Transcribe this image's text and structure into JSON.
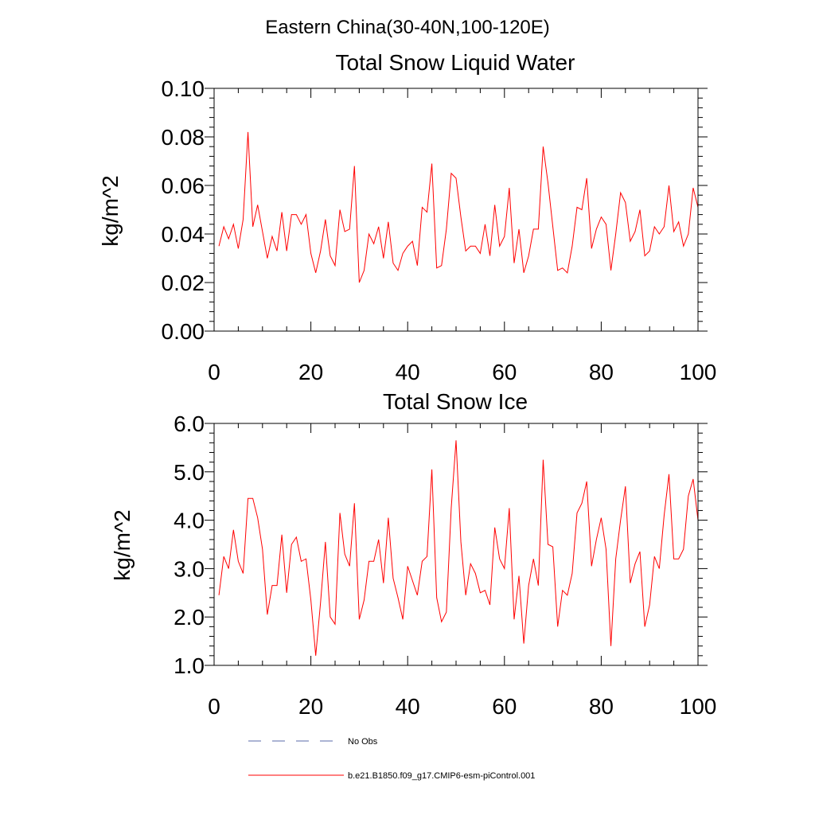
{
  "figure_title": "Eastern China(30-40N,100-120E)",
  "colors": {
    "series": "#ff0000",
    "no_obs": "#5a6aa8",
    "axis": "#000000"
  },
  "legend": [
    {
      "label": "No Obs",
      "style": "dashed",
      "color": "#5a6aa8"
    },
    {
      "label": "b.e21.B1850.f09_g17.CMIP6-esm-piControl.001",
      "style": "solid",
      "color": "#ff0000"
    }
  ],
  "chart_data": [
    {
      "type": "line",
      "title": "Total Snow Liquid Water",
      "ylabel": "kg/m^2",
      "xlabel": "",
      "xlim": [
        0,
        100
      ],
      "ylim": [
        0,
        0.1
      ],
      "xticks": [
        "0",
        "20",
        "40",
        "60",
        "80",
        "100"
      ],
      "yticks": [
        "0.00",
        "0.02",
        "0.04",
        "0.06",
        "0.08",
        "0.10"
      ],
      "series": [
        {
          "name": "b.e21.B1850.f09_g17.CMIP6-esm-piControl.001",
          "x_start": 1,
          "values": [
            0.035,
            0.043,
            0.038,
            0.044,
            0.034,
            0.046,
            0.082,
            0.043,
            0.052,
            0.041,
            0.03,
            0.039,
            0.033,
            0.049,
            0.033,
            0.048,
            0.048,
            0.044,
            0.048,
            0.032,
            0.024,
            0.033,
            0.046,
            0.031,
            0.027,
            0.05,
            0.041,
            0.042,
            0.068,
            0.02,
            0.025,
            0.04,
            0.036,
            0.043,
            0.03,
            0.045,
            0.028,
            0.025,
            0.032,
            0.035,
            0.037,
            0.027,
            0.051,
            0.049,
            0.069,
            0.026,
            0.027,
            0.042,
            0.065,
            0.063,
            0.047,
            0.033,
            0.035,
            0.035,
            0.032,
            0.044,
            0.031,
            0.052,
            0.035,
            0.039,
            0.059,
            0.028,
            0.042,
            0.024,
            0.031,
            0.042,
            0.042,
            0.076,
            0.061,
            0.043,
            0.025,
            0.026,
            0.024,
            0.035,
            0.051,
            0.05,
            0.063,
            0.034,
            0.042,
            0.047,
            0.044,
            0.025,
            0.04,
            0.057,
            0.053,
            0.037,
            0.041,
            0.05,
            0.031,
            0.033,
            0.043,
            0.04,
            0.043,
            0.06,
            0.041,
            0.045,
            0.035,
            0.04,
            0.059,
            0.051
          ]
        }
      ]
    },
    {
      "type": "line",
      "title": "Total Snow Ice",
      "ylabel": "kg/m^2",
      "xlabel": "",
      "xlim": [
        0,
        100
      ],
      "ylim": [
        1.0,
        6.0
      ],
      "xticks": [
        "0",
        "20",
        "40",
        "60",
        "80",
        "100"
      ],
      "yticks": [
        "1.0",
        "2.0",
        "3.0",
        "4.0",
        "5.0",
        "6.0"
      ],
      "series": [
        {
          "name": "b.e21.B1850.f09_g17.CMIP6-esm-piControl.001",
          "x_start": 1,
          "values": [
            2.45,
            3.25,
            3.0,
            3.8,
            3.15,
            2.9,
            4.45,
            4.45,
            4.05,
            3.4,
            2.05,
            2.65,
            2.65,
            3.7,
            2.5,
            3.5,
            3.65,
            3.15,
            3.2,
            2.35,
            1.2,
            2.3,
            3.55,
            2.0,
            1.85,
            4.15,
            3.3,
            3.05,
            4.35,
            1.95,
            2.35,
            3.15,
            3.15,
            3.6,
            2.7,
            4.05,
            2.8,
            2.4,
            1.95,
            3.05,
            2.75,
            2.45,
            3.15,
            3.25,
            5.05,
            2.4,
            1.9,
            2.1,
            4.25,
            5.65,
            3.55,
            2.45,
            3.1,
            2.9,
            2.5,
            2.55,
            2.25,
            3.85,
            3.2,
            3.0,
            4.25,
            1.95,
            2.85,
            1.45,
            2.65,
            3.2,
            2.65,
            5.25,
            3.5,
            3.45,
            1.8,
            2.55,
            2.45,
            2.9,
            4.15,
            4.35,
            4.8,
            3.05,
            3.6,
            4.05,
            3.4,
            1.4,
            3.2,
            4.0,
            4.7,
            2.7,
            3.1,
            3.35,
            1.8,
            2.25,
            3.25,
            3.0,
            4.1,
            4.95,
            3.2,
            3.2,
            3.4,
            4.5,
            4.85,
            4.0
          ]
        }
      ]
    }
  ]
}
